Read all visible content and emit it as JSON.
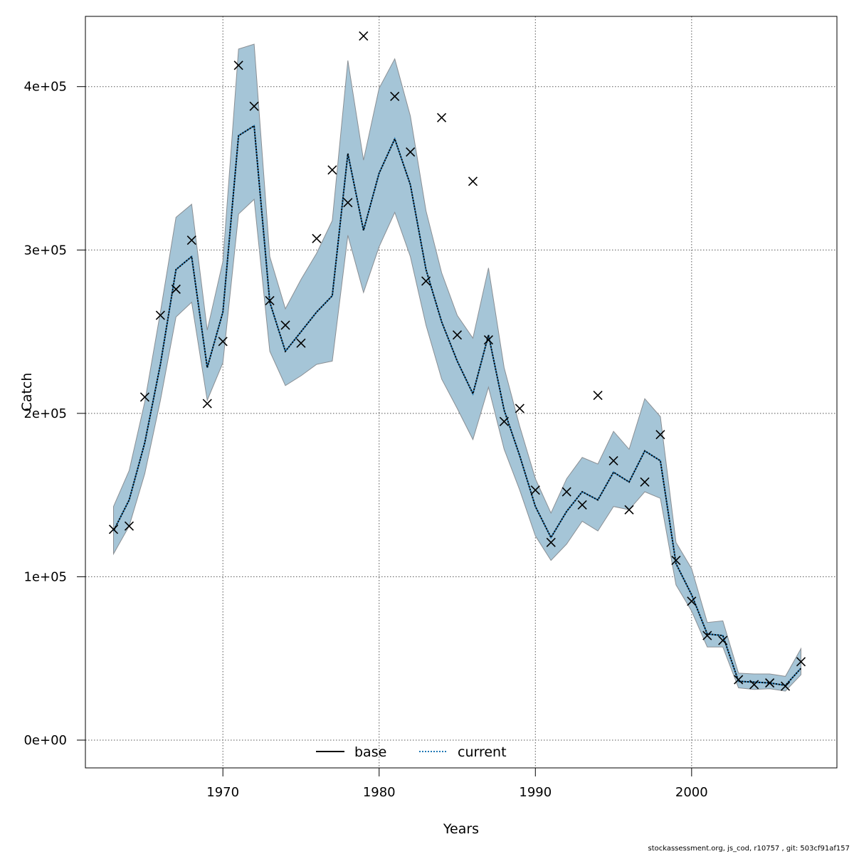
{
  "chart_data": {
    "type": "line",
    "xlabel": "Years",
    "ylabel": "Catch",
    "xlim": [
      1961.2,
      2009.3
    ],
    "ylim": [
      -17000,
      443000
    ],
    "x_ticks": [
      1970,
      1980,
      1990,
      2000
    ],
    "y_ticks": [
      0,
      100000,
      200000,
      300000,
      400000
    ],
    "y_tick_labels": [
      "0e+00",
      "1e+05",
      "2e+05",
      "3e+05",
      "4e+05"
    ],
    "grid": true,
    "legend": {
      "placement": "bottom-center",
      "entries": [
        {
          "name": "base",
          "line_style": "solid",
          "color": "#000000"
        },
        {
          "name": "current",
          "line_style": "dotted",
          "color": "#1f77b4"
        }
      ]
    },
    "colors": {
      "band_fill": "#a5c5d7",
      "band_edge": "#8a8f94",
      "grid": "#555555",
      "observed_marker": "#000000"
    },
    "x": [
      1963,
      1964,
      1965,
      1966,
      1967,
      1968,
      1969,
      1970,
      1971,
      1972,
      1973,
      1974,
      1975,
      1976,
      1977,
      1978,
      1979,
      1980,
      1981,
      1982,
      1983,
      1984,
      1985,
      1986,
      1987,
      1988,
      1989,
      1990,
      1991,
      1992,
      1993,
      1994,
      1995,
      1996,
      1997,
      1998,
      1999,
      2000,
      2001,
      2002,
      2003,
      2004,
      2005,
      2006,
      2007
    ],
    "series": [
      {
        "name": "current",
        "role": "estimate",
        "values": [
          128000,
          147000,
          182000,
          230000,
          288000,
          296000,
          228000,
          262000,
          370000,
          376000,
          268000,
          238000,
          250000,
          262000,
          272000,
          359000,
          312000,
          347000,
          368000,
          340000,
          288000,
          256000,
          232000,
          212000,
          248000,
          202000,
          174000,
          143000,
          124000,
          140000,
          152000,
          147000,
          164000,
          158000,
          177000,
          171000,
          108000,
          89000,
          65000,
          64000,
          36000,
          35500,
          35000,
          33500,
          44000
        ]
      },
      {
        "name": "current",
        "role": "confidence_band_upper",
        "values": [
          143000,
          165000,
          207000,
          262000,
          320000,
          328000,
          251000,
          293000,
          423000,
          426000,
          296000,
          264000,
          282000,
          298000,
          318000,
          416000,
          355000,
          399000,
          417000,
          382000,
          324000,
          286000,
          260000,
          246000,
          289000,
          228000,
          192000,
          160000,
          139000,
          160000,
          173000,
          169000,
          189000,
          178000,
          209000,
          198000,
          121000,
          105000,
          72000,
          73000,
          41000,
          40500,
          40500,
          39000,
          56000
        ]
      },
      {
        "name": "current",
        "role": "confidence_band_lower",
        "values": [
          114000,
          131000,
          163000,
          208000,
          259000,
          268000,
          208000,
          231000,
          322000,
          331000,
          238000,
          217000,
          223000,
          230000,
          232000,
          309000,
          274000,
          302000,
          323000,
          296000,
          254000,
          221000,
          203000,
          184000,
          216000,
          178000,
          153000,
          125000,
          110000,
          120000,
          134000,
          128000,
          143000,
          141000,
          152000,
          148000,
          95000,
          79000,
          57000,
          57000,
          32000,
          31000,
          31500,
          30000,
          40000
        ]
      },
      {
        "name": "observed",
        "role": "observed_points",
        "marker": "x",
        "values": [
          129000,
          131000,
          210000,
          260000,
          276000,
          306000,
          206000,
          244000,
          413000,
          388000,
          269000,
          254000,
          243000,
          307000,
          349000,
          329000,
          431000,
          null,
          394000,
          360000,
          281000,
          381000,
          248000,
          342000,
          245000,
          195000,
          203000,
          153000,
          121000,
          152000,
          144000,
          211000,
          171000,
          141000,
          158000,
          187000,
          110000,
          85000,
          64000,
          61000,
          37000,
          34000,
          35000,
          33000,
          48000
        ]
      }
    ]
  },
  "footer": {
    "text": "stockassessment.org, js_cod, r10757 , git: 503cf91af157"
  }
}
